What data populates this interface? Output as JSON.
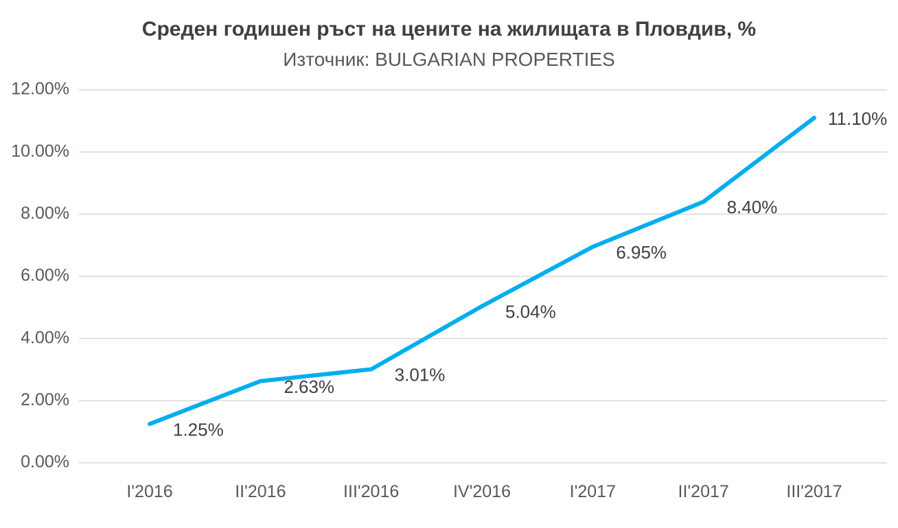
{
  "chart_data": {
    "type": "line",
    "title": "Среден годишен ръст на цените на жилищата в Пловдив, %",
    "subtitle": "Източник: BULGARIAN PROPERTIES",
    "categories": [
      "I'2016",
      "II'2016",
      "III'2016",
      "IV'2016",
      "I'2017",
      "II'2017",
      "III'2017"
    ],
    "series": [
      {
        "name": "Среден годишен ръст",
        "values": [
          1.25,
          2.63,
          3.01,
          5.04,
          6.95,
          8.4,
          11.1
        ],
        "data_labels": [
          "1.25%",
          "2.63%",
          "3.01%",
          "5.04%",
          "6.95%",
          "8.40%",
          "11.10%"
        ]
      }
    ],
    "ylim": [
      0,
      12
    ],
    "y_tick_step": 2,
    "y_tick_labels": [
      "0.00%",
      "2.00%",
      "4.00%",
      "6.00%",
      "8.00%",
      "10.00%",
      "12.00%"
    ],
    "grid": true,
    "legend": "none",
    "colors": {
      "line": "#00AEEF",
      "grid": "#D9D9D9",
      "title": "#404040",
      "subtitle": "#595959",
      "axis_labels": "#595959",
      "data_labels": "#404040",
      "background": "#FFFFFF"
    }
  }
}
